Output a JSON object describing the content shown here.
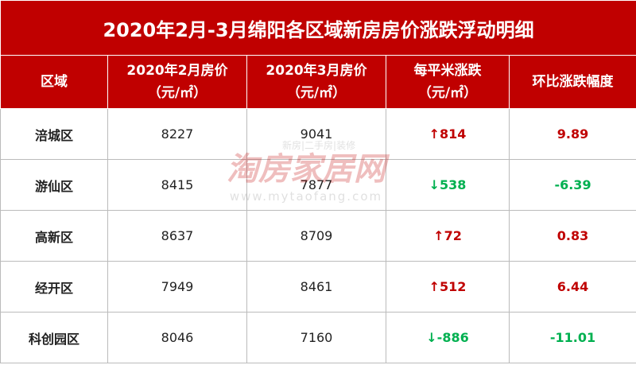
{
  "title": "2020年2月-3月绵阳各区域新房房价涨跌浮动明细",
  "table": {
    "header": [
      [
        "区域"
      ],
      [
        "2020年2月房价",
        "（元/㎡）"
      ],
      [
        "2020年3月房价",
        "（元/㎡）"
      ],
      [
        "每平米涨跌",
        "（元/㎡）"
      ],
      [
        "环比涨跌幅度"
      ]
    ],
    "rows": [
      [
        "涪城区",
        "8227",
        "9041",
        "↑814",
        "9.89"
      ],
      [
        "游仙区",
        "8415",
        "7877",
        "↓538",
        "-6.39"
      ],
      [
        "高新区",
        "8637",
        "8709",
        "↑72",
        "0.83"
      ],
      [
        "经开区",
        "7949",
        "8461",
        "↑512",
        "6.44"
      ],
      [
        "科创园区",
        "8046",
        "7160",
        "↓-886",
        "-11.01"
      ]
    ],
    "row_colors": [
      "#c00000",
      "#00b050",
      "#c00000",
      "#c00000",
      "#00b050"
    ]
  },
  "watermark": {
    "brand": "淘房家居网",
    "tagline": "新房|二手房|装修",
    "url": "www.mytaofang.com"
  }
}
